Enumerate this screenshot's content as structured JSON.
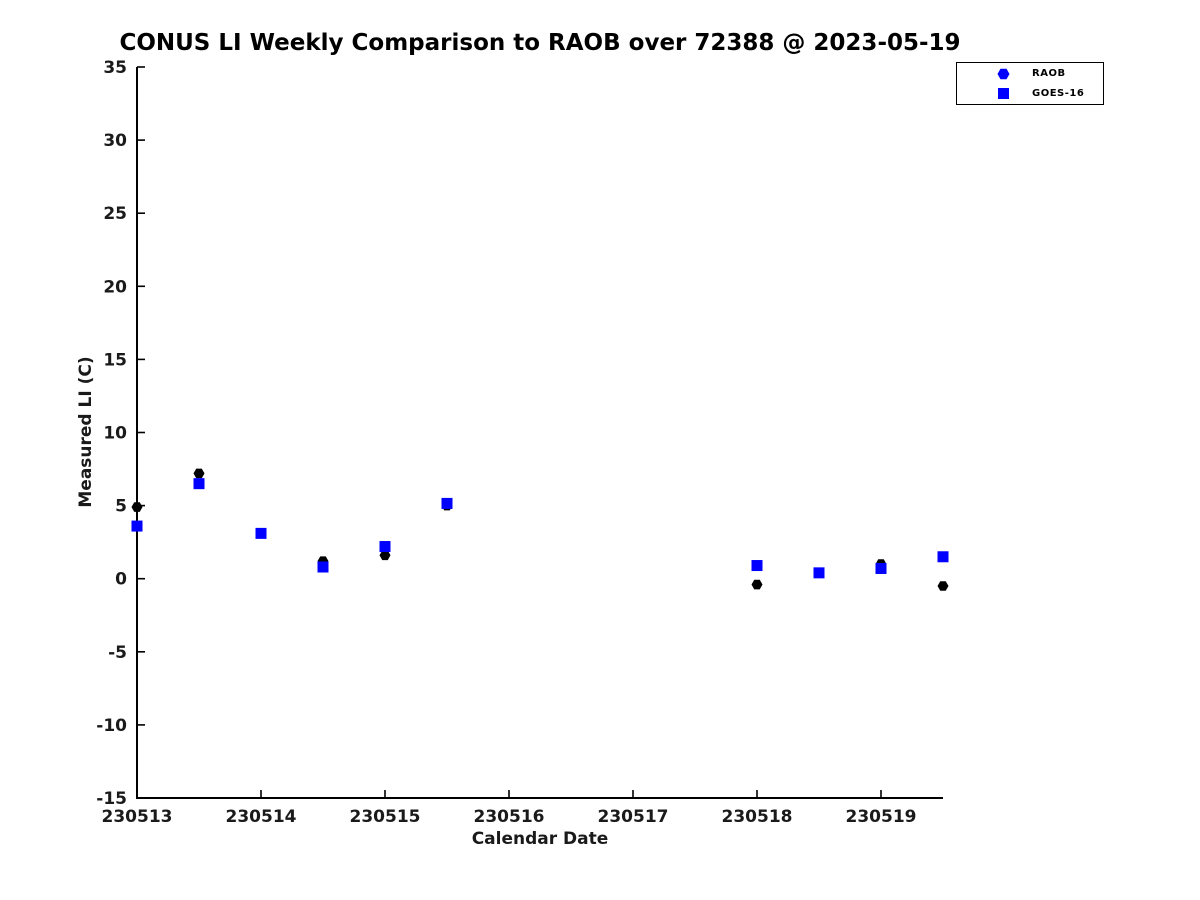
{
  "colors": {
    "raob_marker": "#000000",
    "goes_marker": "#0000ff",
    "legend_marker": "#0000ff",
    "axis": "#000000",
    "background": "#ffffff"
  },
  "chart_data": {
    "type": "scatter",
    "title": "CONUS LI Weekly Comparison to RAOB over 72388 @ 2023-05-19",
    "xlabel": "Calendar Date",
    "ylabel": "Measured LI (C)",
    "xlim": [
      230513,
      230519.5
    ],
    "ylim": [
      -15,
      35
    ],
    "x_ticks": [
      230513,
      230514,
      230515,
      230516,
      230517,
      230518,
      230519
    ],
    "y_ticks": [
      -15,
      -10,
      -5,
      0,
      5,
      10,
      15,
      20,
      25,
      30,
      35
    ],
    "grid": false,
    "legend_position": "top-right",
    "series": [
      {
        "name": "RAOB",
        "marker": "hexagon",
        "color": "#000000",
        "x": [
          230513.0,
          230513.5,
          230514.0,
          230514.5,
          230515.0,
          230515.5,
          230518.0,
          230518.5,
          230519.0,
          230519.5
        ],
        "y": [
          4.9,
          7.2,
          3.1,
          1.2,
          1.6,
          5.0,
          -0.4,
          0.4,
          1.0,
          -0.5
        ]
      },
      {
        "name": "GOES-16",
        "marker": "square",
        "color": "#0000ff",
        "x": [
          230513.0,
          230513.5,
          230514.0,
          230514.5,
          230515.0,
          230515.5,
          230518.0,
          230518.5,
          230519.0,
          230519.5
        ],
        "y": [
          3.6,
          6.5,
          3.1,
          0.8,
          2.2,
          5.15,
          0.9,
          0.4,
          0.7,
          1.5
        ]
      }
    ]
  }
}
